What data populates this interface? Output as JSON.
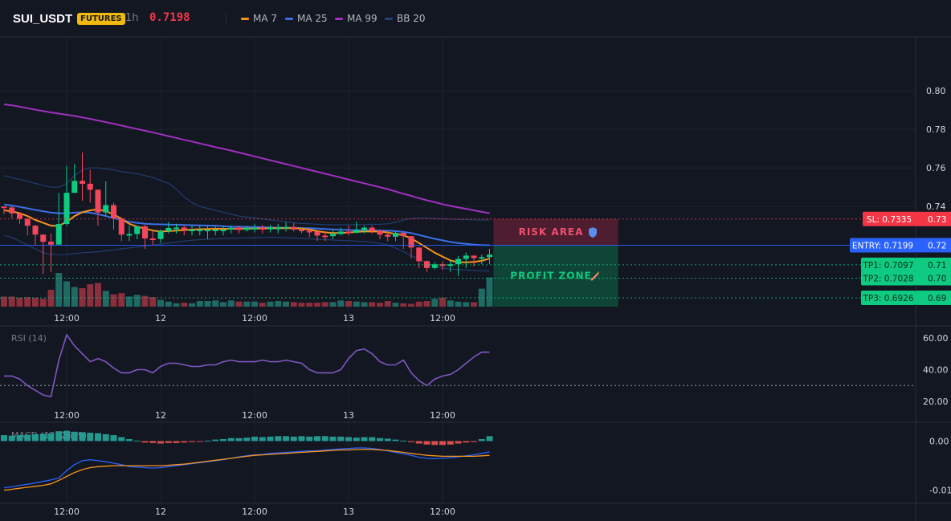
{
  "header": {
    "symbol": "SUI_USDT",
    "badge": "FUTURES",
    "timeframe": "1h",
    "price": "0.7198",
    "legend": [
      {
        "name": "MA 7",
        "color": "#f7931a"
      },
      {
        "name": "MA 25",
        "color": "#3b6fe8"
      },
      {
        "name": "MA 99",
        "color": "#a030c0"
      },
      {
        "name": "BB 20",
        "color": "#23407a"
      }
    ]
  },
  "colors": {
    "up": "#0ecb81",
    "down": "#f6465d",
    "vol_up": "#1e6b64",
    "vol_down": "#8a2f3b",
    "rsi": "#7e57c2",
    "macd": "#2962ff",
    "signal": "#f7931a",
    "sl": "#f23645",
    "entry": "#2962ff",
    "tp": "#0ecb81"
  },
  "chart_data": [
    {
      "type": "candlestick",
      "title": "SUI_USDT",
      "ylim": [
        0.688,
        0.828
      ],
      "y_ticks": [
        "0.80",
        "0.78",
        "0.76",
        "0.74"
      ],
      "x_ticks": [
        {
          "x": 8.0,
          "label": "12:00"
        },
        {
          "x": 20.0,
          "label": "12"
        },
        {
          "x": 32.0,
          "label": "12:00"
        },
        {
          "x": 44.0,
          "label": "13"
        },
        {
          "x": 56.0,
          "label": "12:00"
        }
      ],
      "candles": [
        [
          0,
          0.7395,
          0.738,
          0.736
        ],
        [
          1,
          0.7364,
          0.74,
          0.734
        ],
        [
          2,
          0.7336,
          0.7365,
          0.731
        ],
        [
          3,
          0.73,
          0.7338,
          0.725
        ],
        [
          4,
          0.7254,
          0.7305,
          0.72
        ],
        [
          5,
          0.7217,
          0.7256,
          0.705
        ],
        [
          6,
          0.7202,
          0.726,
          0.706
        ],
        [
          7,
          0.7309,
          0.747,
          0.721
        ],
        [
          8,
          0.7471,
          0.761,
          0.73
        ],
        [
          9,
          0.7533,
          0.762,
          0.747
        ],
        [
          10,
          0.7518,
          0.768,
          0.743
        ],
        [
          11,
          0.7487,
          0.759,
          0.742
        ],
        [
          12,
          0.7369,
          0.748,
          0.73
        ],
        [
          13,
          0.7407,
          0.753,
          0.735
        ],
        [
          14,
          0.7338,
          0.742,
          0.728
        ],
        [
          15,
          0.7254,
          0.7345,
          0.722
        ],
        [
          16,
          0.7257,
          0.73,
          0.722
        ],
        [
          17,
          0.7297,
          0.73,
          0.723
        ],
        [
          18,
          0.7234,
          0.7304,
          0.718
        ],
        [
          19,
          0.7231,
          0.727,
          0.72
        ],
        [
          20,
          0.7272,
          0.728,
          0.721
        ],
        [
          21,
          0.7289,
          0.732,
          0.726
        ],
        [
          22,
          0.7291,
          0.731,
          0.726
        ],
        [
          23,
          0.728,
          0.73,
          0.725
        ],
        [
          24,
          0.728,
          0.73,
          0.725
        ],
        [
          25,
          0.728,
          0.73,
          0.725
        ],
        [
          26,
          0.728,
          0.73,
          0.723
        ],
        [
          27,
          0.728,
          0.73,
          0.725
        ],
        [
          28,
          0.728,
          0.73,
          0.725
        ],
        [
          29,
          0.729,
          0.73,
          0.726
        ],
        [
          30,
          0.7278,
          0.73,
          0.726
        ],
        [
          31,
          0.7289,
          0.73,
          0.727
        ],
        [
          32,
          0.7289,
          0.731,
          0.7265
        ],
        [
          33,
          0.7286,
          0.7305,
          0.726
        ],
        [
          34,
          0.729,
          0.7305,
          0.7265
        ],
        [
          35,
          0.729,
          0.731,
          0.726
        ],
        [
          36,
          0.7294,
          0.732,
          0.727
        ],
        [
          37,
          0.728,
          0.7315,
          0.727
        ],
        [
          38,
          0.7274,
          0.729,
          0.726
        ],
        [
          39,
          0.727,
          0.729,
          0.724
        ],
        [
          40,
          0.7249,
          0.726,
          0.722
        ],
        [
          41,
          0.7246,
          0.7268,
          0.722
        ],
        [
          42,
          0.7257,
          0.728,
          0.723
        ],
        [
          43,
          0.727,
          0.729,
          0.725
        ],
        [
          44,
          0.7264,
          0.73,
          0.725
        ],
        [
          45,
          0.7279,
          0.732,
          0.726
        ],
        [
          46,
          0.729,
          0.73,
          0.726
        ],
        [
          47,
          0.7274,
          0.73,
          0.726
        ],
        [
          48,
          0.7254,
          0.728,
          0.723
        ],
        [
          49,
          0.7243,
          0.727,
          0.722
        ],
        [
          50,
          0.7263,
          0.727,
          0.722
        ],
        [
          51,
          0.7246,
          0.726,
          0.718
        ],
        [
          52,
          0.7187,
          0.72,
          0.713
        ],
        [
          53,
          0.7116,
          0.717,
          0.708
        ],
        [
          54,
          0.7081,
          0.712,
          0.706
        ],
        [
          55,
          0.71,
          0.7112,
          0.7073
        ],
        [
          56,
          0.7098,
          0.7115,
          0.707
        ],
        [
          57,
          0.71,
          0.712,
          0.706
        ],
        [
          58,
          0.7128,
          0.7142,
          0.704
        ],
        [
          59,
          0.7145,
          0.7162,
          0.708
        ],
        [
          60,
          0.7132,
          0.7143,
          0.709
        ],
        [
          61,
          0.7137,
          0.715,
          0.71
        ],
        [
          62,
          0.715,
          0.718,
          0.71
        ]
      ],
      "opens": [
        0.74,
        0.7395,
        0.7364,
        0.7336,
        0.73,
        0.7254,
        0.7217,
        0.7202,
        0.7309,
        0.7471,
        0.7533,
        0.7518,
        0.7487,
        0.7369,
        0.7407,
        0.7338,
        0.7254,
        0.7257,
        0.7297,
        0.7234,
        0.7231,
        0.7272,
        0.7289,
        0.7291,
        0.728,
        0.728,
        0.728,
        0.728,
        0.728,
        0.728,
        0.729,
        0.7278,
        0.7289,
        0.7289,
        0.7286,
        0.729,
        0.729,
        0.7294,
        0.728,
        0.7274,
        0.727,
        0.7249,
        0.7246,
        0.7257,
        0.727,
        0.7264,
        0.7279,
        0.729,
        0.7274,
        0.7254,
        0.7243,
        0.7263,
        0.7246,
        0.7187,
        0.7116,
        0.7081,
        0.71,
        0.7098,
        0.71,
        0.7128,
        0.7145,
        0.7132,
        0.7137
      ],
      "ma7": [
        0.738,
        0.7375,
        0.7365,
        0.735,
        0.733,
        0.7315,
        0.73,
        0.73,
        0.732,
        0.735,
        0.737,
        0.738,
        0.7385,
        0.7375,
        0.736,
        0.7335,
        0.731,
        0.7295,
        0.7285,
        0.7275,
        0.727,
        0.7272,
        0.7275,
        0.7278,
        0.728,
        0.7282,
        0.7283,
        0.7284,
        0.7284,
        0.7284,
        0.7285,
        0.7285,
        0.7286,
        0.7286,
        0.7287,
        0.7287,
        0.7288,
        0.7287,
        0.7285,
        0.728,
        0.7272,
        0.7266,
        0.7262,
        0.7262,
        0.7265,
        0.7268,
        0.727,
        0.7271,
        0.727,
        0.7265,
        0.7258,
        0.725,
        0.7235,
        0.721,
        0.7185,
        0.716,
        0.714,
        0.712,
        0.711,
        0.711,
        0.7112,
        0.7118,
        0.713
      ],
      "ma25": [
        0.741,
        0.7405,
        0.7398,
        0.739,
        0.7382,
        0.7375,
        0.7368,
        0.7365,
        0.7365,
        0.7368,
        0.737,
        0.7368,
        0.736,
        0.735,
        0.734,
        0.733,
        0.732,
        0.7315,
        0.731,
        0.7308,
        0.7307,
        0.7306,
        0.7305,
        0.7304,
        0.7303,
        0.7302,
        0.7301,
        0.73,
        0.7298,
        0.7296,
        0.7295,
        0.7294,
        0.7293,
        0.7292,
        0.7291,
        0.729,
        0.729,
        0.7289,
        0.7288,
        0.7287,
        0.7285,
        0.7283,
        0.7281,
        0.7279,
        0.7278,
        0.7277,
        0.7277,
        0.7276,
        0.7275,
        0.7274,
        0.7272,
        0.7268,
        0.7262,
        0.7252,
        0.7242,
        0.7232,
        0.7224,
        0.7216,
        0.721,
        0.7206,
        0.7202,
        0.72,
        0.7199
      ],
      "ma99": [
        0.793,
        0.7925,
        0.7918,
        0.791,
        0.7902,
        0.7895,
        0.7888,
        0.7882,
        0.7876,
        0.787,
        0.7862,
        0.7855,
        0.7846,
        0.7838,
        0.7829,
        0.782,
        0.7811,
        0.7802,
        0.7793,
        0.7784,
        0.7775,
        0.7765,
        0.7756,
        0.7746,
        0.7737,
        0.7727,
        0.7718,
        0.7708,
        0.7699,
        0.769,
        0.768,
        0.767,
        0.766,
        0.765,
        0.764,
        0.763,
        0.762,
        0.761,
        0.76,
        0.759,
        0.758,
        0.757,
        0.756,
        0.755,
        0.754,
        0.753,
        0.752,
        0.751,
        0.75,
        0.749,
        0.7478,
        0.7466,
        0.7455,
        0.7443,
        0.7432,
        0.7422,
        0.7412,
        0.7403,
        0.7395,
        0.7388,
        0.738,
        0.7372,
        0.7365
      ],
      "bb_upper": [
        0.756,
        0.755,
        0.754,
        0.753,
        0.752,
        0.751,
        0.75,
        0.75,
        0.752,
        0.756,
        0.759,
        0.76,
        0.76,
        0.7595,
        0.759,
        0.758,
        0.7575,
        0.757,
        0.756,
        0.755,
        0.7535,
        0.752,
        0.749,
        0.745,
        0.742,
        0.74,
        0.739,
        0.738,
        0.737,
        0.736,
        0.735,
        0.7345,
        0.734,
        0.7335,
        0.733,
        0.7325,
        0.732,
        0.7315,
        0.7312,
        0.731,
        0.7308,
        0.7306,
        0.7305,
        0.7305,
        0.7305,
        0.7305,
        0.7306,
        0.7307,
        0.7308,
        0.731,
        0.7318,
        0.733,
        0.7338,
        0.734,
        0.734,
        0.7338,
        0.7336,
        0.7334,
        0.7333,
        0.7332,
        0.7331,
        0.733,
        0.733
      ],
      "bb_lower": [
        0.725,
        0.724,
        0.722,
        0.72,
        0.718,
        0.716,
        0.715,
        0.715,
        0.715,
        0.7155,
        0.716,
        0.7162,
        0.7165,
        0.717,
        0.7175,
        0.718,
        0.7185,
        0.719,
        0.7195,
        0.72,
        0.7205,
        0.721,
        0.7215,
        0.722,
        0.7225,
        0.7228,
        0.723,
        0.7232,
        0.7234,
        0.7235,
        0.7236,
        0.7237,
        0.7238,
        0.7239,
        0.724,
        0.724,
        0.7238,
        0.7236,
        0.7234,
        0.7232,
        0.723,
        0.7228,
        0.7226,
        0.7224,
        0.7222,
        0.722,
        0.7218,
        0.7214,
        0.7208,
        0.72,
        0.7185,
        0.7165,
        0.7145,
        0.7125,
        0.7105,
        0.709,
        0.708,
        0.7075,
        0.7072,
        0.707,
        0.7068,
        0.7066,
        0.7065
      ],
      "volume": [
        0.18,
        0.18,
        0.16,
        0.17,
        0.16,
        0.14,
        0.3,
        0.6,
        0.45,
        0.35,
        0.33,
        0.4,
        0.42,
        0.28,
        0.22,
        0.24,
        0.18,
        0.21,
        0.19,
        0.17,
        0.12,
        0.09,
        0.06,
        0.07,
        0.06,
        0.1,
        0.1,
        0.11,
        0.08,
        0.11,
        0.09,
        0.09,
        0.09,
        0.07,
        0.09,
        0.1,
        0.09,
        0.08,
        0.07,
        0.07,
        0.07,
        0.08,
        0.08,
        0.11,
        0.1,
        0.09,
        0.08,
        0.08,
        0.07,
        0.1,
        0.07,
        0.06,
        0.05,
        0.09,
        0.1,
        0.14,
        0.16,
        0.11,
        0.09,
        0.08,
        0.08,
        0.32,
        0.52
      ],
      "levels": [
        {
          "label": "SL: 0.7335",
          "axis": "0.73",
          "value": 0.7335,
          "kind": "sl"
        },
        {
          "label": "ENTRY: 0.7199",
          "axis": "0.72",
          "value": 0.7199,
          "kind": "entry"
        },
        {
          "label": "TP1: 0.7097",
          "axis": "0.71",
          "value": 0.7097,
          "kind": "tp"
        },
        {
          "label": "TP2: 0.7028",
          "axis": "0.70",
          "value": 0.7028,
          "kind": "tp"
        },
        {
          "label": "TP3: 0.6926",
          "axis": "0.69",
          "value": 0.6926,
          "kind": "tp"
        }
      ],
      "zones": {
        "risk_label": "RISK AREA",
        "profit_label": "PROFIT ZONE"
      }
    },
    {
      "type": "line",
      "title": "RSI (14)",
      "ylim": [
        17,
        67
      ],
      "y_ticks": [
        "60.00",
        "40.00",
        "20.00"
      ],
      "reference_line": 30,
      "x_ticks": [
        {
          "x": 8.0,
          "label": "12:00"
        },
        {
          "x": 20.0,
          "label": "12"
        },
        {
          "x": 32.0,
          "label": "12:00"
        },
        {
          "x": 44.0,
          "label": "13"
        },
        {
          "x": 56.0,
          "label": "12:00"
        }
      ],
      "values": [
        36,
        36,
        34,
        30,
        27,
        24,
        23,
        46,
        62,
        55,
        50,
        45,
        47,
        45,
        41,
        38,
        38,
        40,
        40,
        38,
        42,
        44,
        44,
        43,
        42,
        42,
        43,
        43,
        45,
        46,
        45,
        45,
        45,
        46,
        45,
        45,
        46,
        45,
        44,
        40,
        38,
        38,
        38,
        40,
        47,
        52,
        53,
        50,
        45,
        43,
        43,
        46,
        38,
        33,
        30,
        34,
        36,
        37,
        40,
        44,
        48,
        51,
        51
      ]
    },
    {
      "type": "bar_line",
      "title": "MACD (12, 26, 9)",
      "ylim": [
        -0.0125,
        0.0035
      ],
      "y_ticks": [
        "0.00",
        "-0.01"
      ],
      "x_ticks": [
        {
          "x": 8.0,
          "label": "12:00"
        },
        {
          "x": 20.0,
          "label": "12"
        },
        {
          "x": 32.0,
          "label": "12:00"
        },
        {
          "x": 44.0,
          "label": "13"
        },
        {
          "x": 56.0,
          "label": "12:00"
        }
      ],
      "histogram": [
        0.0012,
        0.0011,
        0.0012,
        0.0013,
        0.0014,
        0.0015,
        0.0016,
        0.002,
        0.0021,
        0.0019,
        0.0018,
        0.0017,
        0.0016,
        0.0014,
        0.0012,
        0.0008,
        0.0004,
        0.0001,
        -0.0003,
        -0.0004,
        -0.0005,
        -0.0004,
        -0.0004,
        -0.0003,
        -0.0002,
        -0.0001,
        0.0001,
        0.0003,
        0.0004,
        0.0006,
        0.0006,
        0.0007,
        0.0009,
        0.0008,
        0.0009,
        0.001,
        0.001,
        0.0009,
        0.001,
        0.0009,
        0.001,
        0.001,
        0.0009,
        0.0009,
        0.0008,
        0.0007,
        0.0008,
        0.0008,
        0.0006,
        0.0005,
        0.0003,
        0.0001,
        -0.0002,
        -0.0005,
        -0.0007,
        -0.0008,
        -0.0008,
        -0.0007,
        -0.0005,
        -0.0003,
        -0.0002,
        0.0004,
        0.001
      ],
      "macd": [
        -0.0095,
        -0.0093,
        -0.009,
        -0.0088,
        -0.0085,
        -0.0082,
        -0.0079,
        -0.0075,
        -0.006,
        -0.0048,
        -0.004,
        -0.0038,
        -0.004,
        -0.0042,
        -0.0045,
        -0.0048,
        -0.0052,
        -0.0053,
        -0.0054,
        -0.0055,
        -0.0054,
        -0.0052,
        -0.005,
        -0.0048,
        -0.0046,
        -0.0044,
        -0.0042,
        -0.004,
        -0.0038,
        -0.0035,
        -0.0032,
        -0.003,
        -0.0028,
        -0.0027,
        -0.0025,
        -0.0024,
        -0.0023,
        -0.0022,
        -0.0021,
        -0.002,
        -0.002,
        -0.0018,
        -0.0017,
        -0.0016,
        -0.0015,
        -0.0014,
        -0.0014,
        -0.0015,
        -0.0017,
        -0.002,
        -0.0023,
        -0.0026,
        -0.0029,
        -0.0033,
        -0.0035,
        -0.0036,
        -0.0035,
        -0.0034,
        -0.0032,
        -0.003,
        -0.0028,
        -0.0025,
        -0.0022
      ],
      "signal": [
        -0.01,
        -0.0098,
        -0.0096,
        -0.0094,
        -0.0092,
        -0.009,
        -0.0087,
        -0.008,
        -0.0072,
        -0.0064,
        -0.0058,
        -0.0054,
        -0.0052,
        -0.0051,
        -0.005,
        -0.005,
        -0.005,
        -0.005,
        -0.005,
        -0.005,
        -0.005,
        -0.0049,
        -0.0048,
        -0.0047,
        -0.0045,
        -0.0043,
        -0.0041,
        -0.0039,
        -0.0037,
        -0.0035,
        -0.0033,
        -0.0031,
        -0.0029,
        -0.0028,
        -0.0027,
        -0.0026,
        -0.0025,
        -0.0024,
        -0.0023,
        -0.0022,
        -0.0021,
        -0.002,
        -0.0019,
        -0.0018,
        -0.0018,
        -0.0017,
        -0.0017,
        -0.0017,
        -0.0018,
        -0.0019,
        -0.0021,
        -0.0023,
        -0.0025,
        -0.0027,
        -0.0029,
        -0.003,
        -0.0031,
        -0.0031,
        -0.0031,
        -0.0031,
        -0.0031,
        -0.003,
        -0.0029
      ]
    }
  ]
}
